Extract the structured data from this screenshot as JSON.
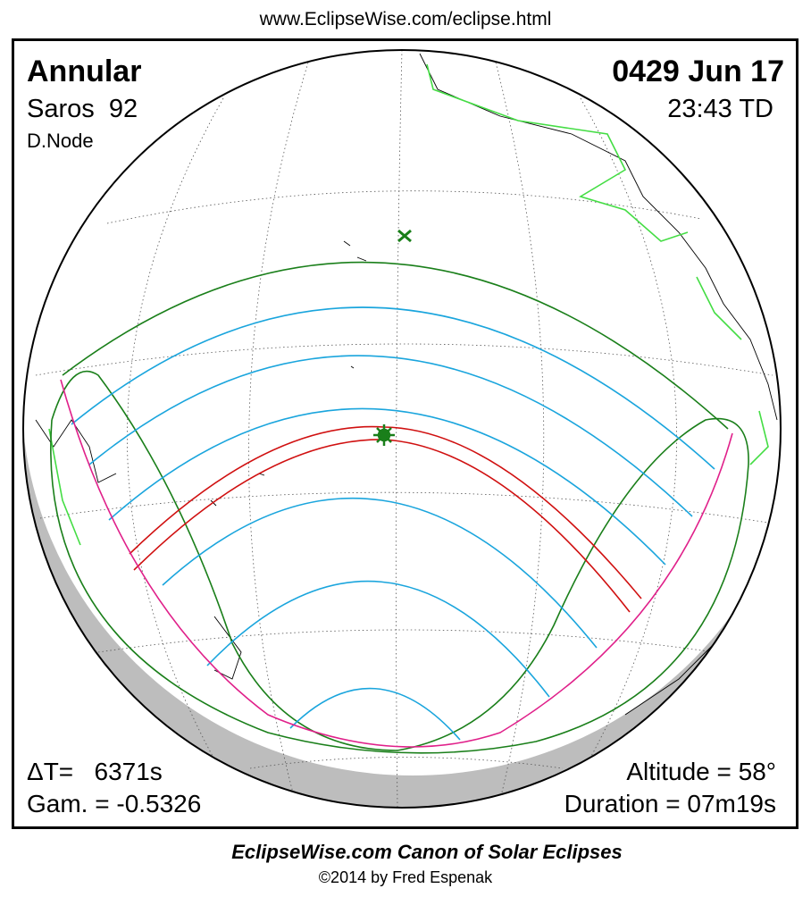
{
  "header": {
    "url": "www.EclipseWise.com/eclipse.html"
  },
  "map": {
    "eclipse_type": "Annular",
    "saros": "Saros  92",
    "node": "D.Node",
    "date": "0429 Jun 17",
    "time": "23:43 TD",
    "delta_t": "ΔT=   6371s",
    "gamma": "Gam. = -0.5326",
    "altitude": "Altitude = 58°",
    "duration": "Duration = 07m19s"
  },
  "footer": {
    "title": "EclipseWise.com Canon of Solar Eclipses",
    "credit": "©2014 by Fred Espenak"
  }
}
